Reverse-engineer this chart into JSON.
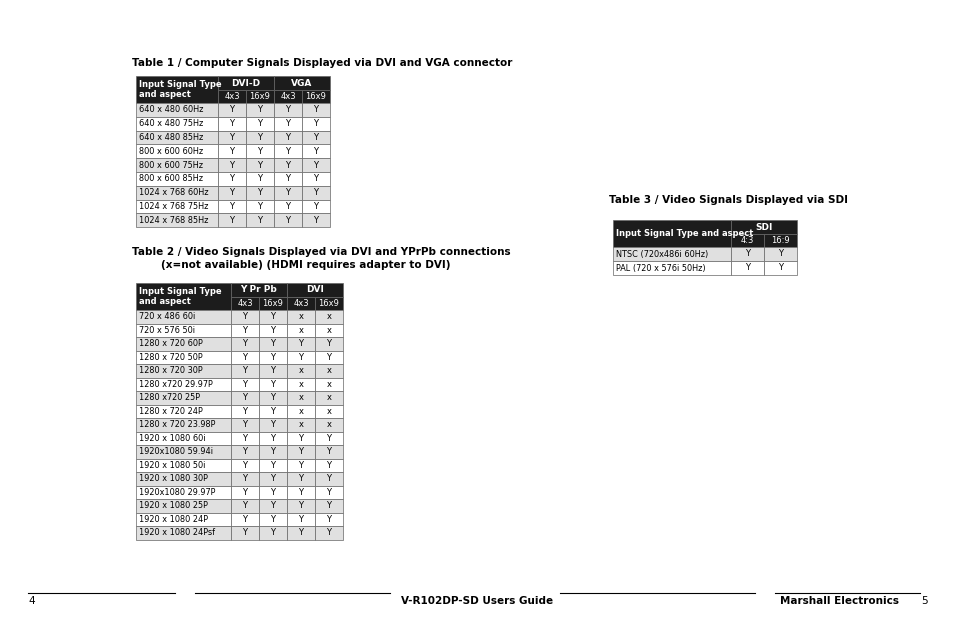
{
  "bg_color": "#ffffff",
  "table1_title": "Table 1 / Computer Signals Displayed via DVI and VGA connector",
  "table1_header1": "DVI-D",
  "table1_header2": "VGA",
  "table1_subheaders": [
    "4x3",
    "16x9",
    "4x3",
    "16x9"
  ],
  "table1_col0_label": "Input Signal Type\nand aspect",
  "table1_rows": [
    [
      "640 x 480 60Hz",
      "Y",
      "Y",
      "Y",
      "Y"
    ],
    [
      "640 x 480 75Hz",
      "Y",
      "Y",
      "Y",
      "Y"
    ],
    [
      "640 x 480 85Hz",
      "Y",
      "Y",
      "Y",
      "Y"
    ],
    [
      "800 x 600 60Hz",
      "Y",
      "Y",
      "Y",
      "Y"
    ],
    [
      "800 x 600 75Hz",
      "Y",
      "Y",
      "Y",
      "Y"
    ],
    [
      "800 x 600 85Hz",
      "Y",
      "Y",
      "Y",
      "Y"
    ],
    [
      "1024 x 768 60Hz",
      "Y",
      "Y",
      "Y",
      "Y"
    ],
    [
      "1024 x 768 75Hz",
      "Y",
      "Y",
      "Y",
      "Y"
    ],
    [
      "1024 x 768 85Hz",
      "Y",
      "Y",
      "Y",
      "Y"
    ]
  ],
  "table2_title_line1": "Table 2 / Video Signals Displayed via DVI and YPrPb connections",
  "table2_title_line2": "        (x=not available) (HDMI requires adapter to DVI)",
  "table2_header1": "Y Pr Pb",
  "table2_header2": "DVI",
  "table2_subheaders": [
    "4x3",
    "16x9",
    "4x3",
    "16x9"
  ],
  "table2_col0_label": "Input Signal Type\nand aspect",
  "table2_rows": [
    [
      "720 x 486 60i",
      "Y",
      "Y",
      "x",
      "x"
    ],
    [
      "720 x 576 50i",
      "Y",
      "Y",
      "x",
      "x"
    ],
    [
      "1280 x 720 60P",
      "Y",
      "Y",
      "Y",
      "Y"
    ],
    [
      "1280 x 720 50P",
      "Y",
      "Y",
      "Y",
      "Y"
    ],
    [
      "1280 x 720 30P",
      "Y",
      "Y",
      "x",
      "x"
    ],
    [
      "1280 x720 29.97P",
      "Y",
      "Y",
      "x",
      "x"
    ],
    [
      "1280 x720 25P",
      "Y",
      "Y",
      "x",
      "x"
    ],
    [
      "1280 x 720 24P",
      "Y",
      "Y",
      "x",
      "x"
    ],
    [
      "1280 x 720 23.98P",
      "Y",
      "Y",
      "x",
      "x"
    ],
    [
      "1920 x 1080 60i",
      "Y",
      "Y",
      "Y",
      "Y"
    ],
    [
      "1920x1080 59.94i",
      "Y",
      "Y",
      "Y",
      "Y"
    ],
    [
      "1920 x 1080 50i",
      "Y",
      "Y",
      "Y",
      "Y"
    ],
    [
      "1920 x 1080 30P",
      "Y",
      "Y",
      "Y",
      "Y"
    ],
    [
      "1920x1080 29.97P",
      "Y",
      "Y",
      "Y",
      "Y"
    ],
    [
      "1920 x 1080 25P",
      "Y",
      "Y",
      "Y",
      "Y"
    ],
    [
      "1920 x 1080 24P",
      "Y",
      "Y",
      "Y",
      "Y"
    ],
    [
      "1920 x 1080 24Psf",
      "Y",
      "Y",
      "Y",
      "Y"
    ]
  ],
  "table3_title": "Table 3 / Video Signals Displayed via SDI",
  "table3_header1": "SDI",
  "table3_subheaders": [
    "4:3",
    "16:9"
  ],
  "table3_col0_label": "Input Signal Type and aspect",
  "table3_rows": [
    [
      "NTSC (720x486i 60Hz)",
      "Y",
      "Y"
    ],
    [
      "PAL (720 x 576i 50Hz)",
      "Y",
      "Y"
    ]
  ],
  "header_bg": "#1c1c1c",
  "header_fg": "#ffffff",
  "row_bg_even": "#e0e0e0",
  "row_bg_odd": "#ffffff",
  "footer_left_num": "4",
  "footer_title": "V-R102DP-SD Users Guide",
  "footer_right_brand": "Marshall Electronics",
  "footer_right_num": "5"
}
